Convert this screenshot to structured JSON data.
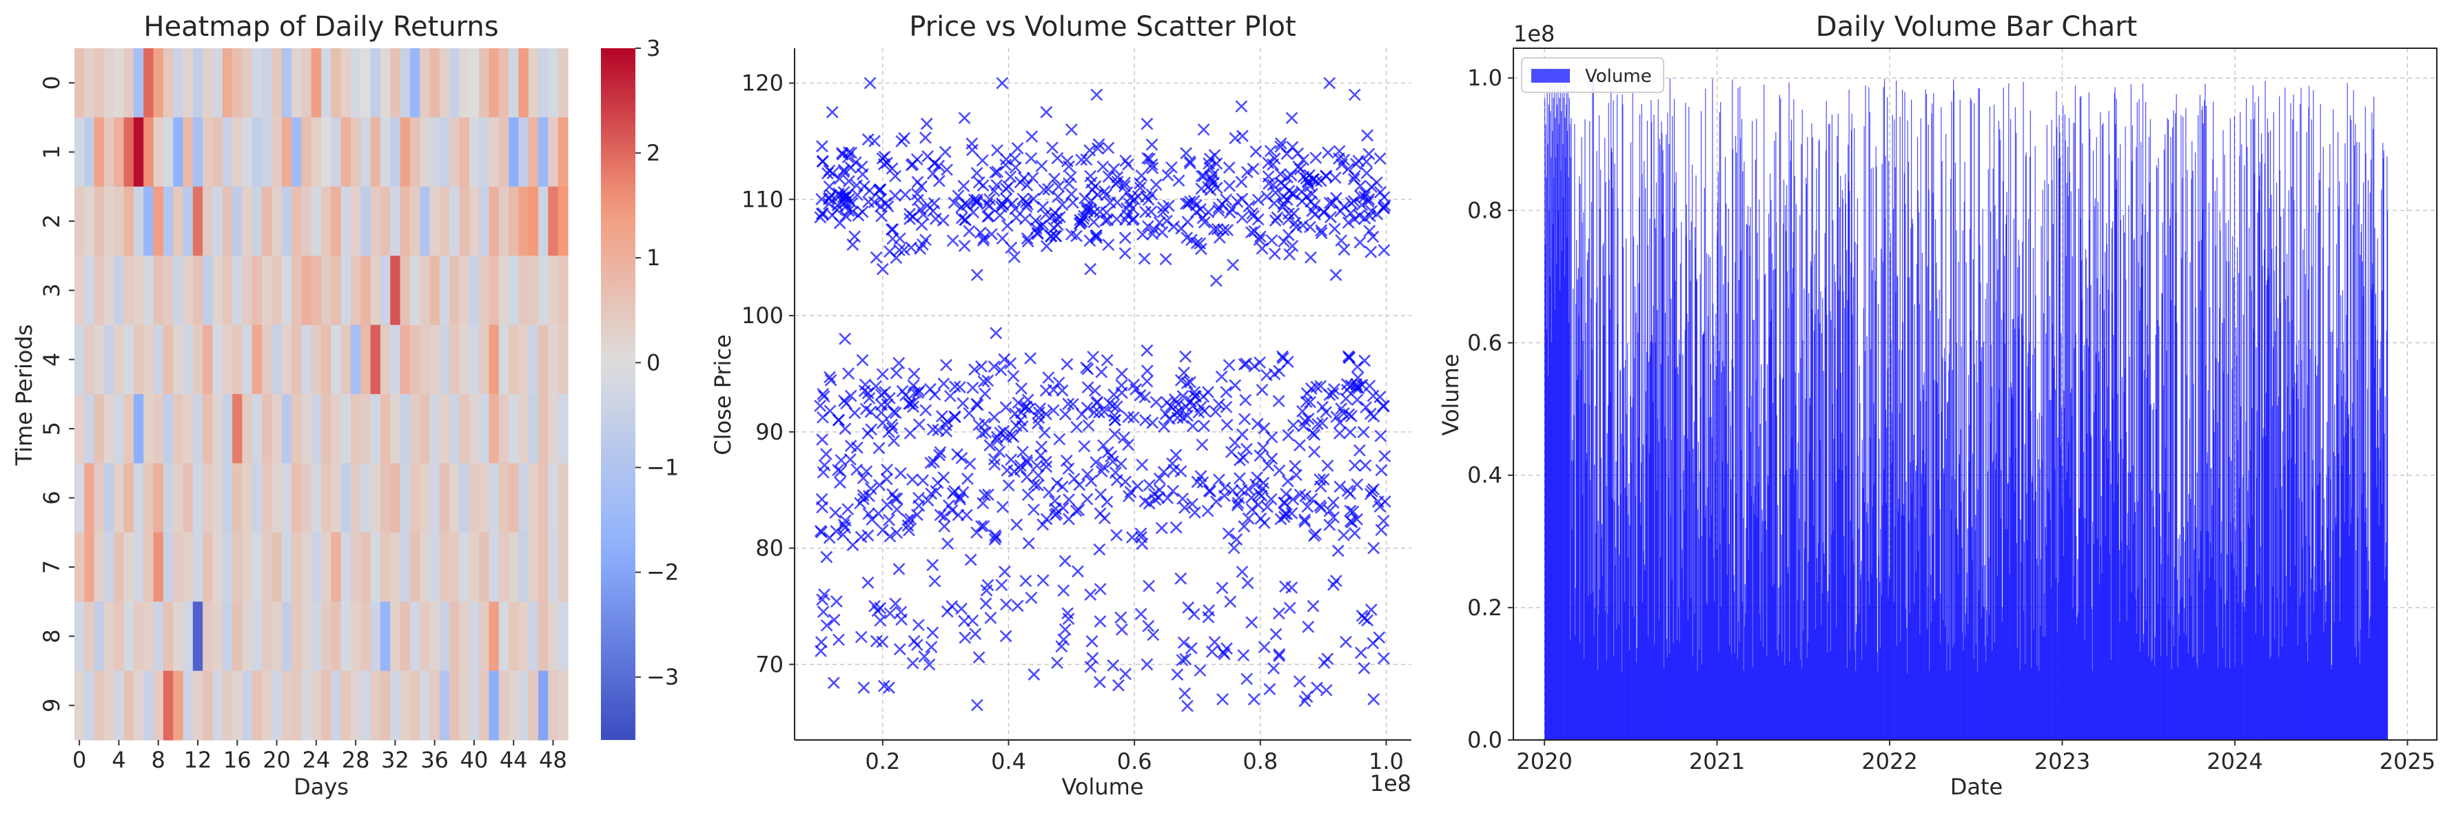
{
  "chart_data": [
    {
      "type": "heatmap",
      "title": "Heatmap of Daily Returns",
      "xlabel": "Days",
      "ylabel": "Time Periods",
      "xticks": [
        "0",
        "4",
        "8",
        "12",
        "16",
        "20",
        "24",
        "28",
        "32",
        "36",
        "40",
        "44",
        "48"
      ],
      "yticks": [
        "0",
        "1",
        "2",
        "3",
        "4",
        "5",
        "6",
        "7",
        "8",
        "9"
      ],
      "n_rows": 10,
      "n_cols": 50,
      "colormap": "coolwarm",
      "colorbar": {
        "vmin": -3.6,
        "vmax": 3.0,
        "ticks": [
          "3",
          "2",
          "1",
          "0",
          "−1",
          "−2",
          "−3"
        ],
        "tick_values": [
          3,
          2,
          1,
          0,
          -1,
          -2,
          -3
        ]
      },
      "values": [
        [
          0.6,
          0.3,
          0.5,
          0.2,
          0.1,
          0.4,
          -1.2,
          2.0,
          1.3,
          0.5,
          -0.4,
          0.2,
          -0.6,
          0.3,
          -0.3,
          1.1,
          0.7,
          0.4,
          -0.3,
          -0.4,
          0.5,
          -1.0,
          0.2,
          0.4,
          1.4,
          -0.3,
          0.7,
          0.3,
          -0.2,
          0.0,
          -0.6,
          0.1,
          0.6,
          -0.5,
          -1.5,
          0.4,
          0.8,
          0.3,
          -0.5,
          0.1,
          0.0,
          0.6,
          1.2,
          0.7,
          -0.3,
          1.4,
          0.3,
          -0.4,
          -0.2,
          0.4
        ],
        [
          -0.3,
          -0.7,
          1.3,
          0.5,
          1.0,
          2.0,
          2.9,
          1.6,
          0.3,
          -0.2,
          -1.7,
          0.8,
          -1.2,
          0.4,
          0.6,
          -0.5,
          0.3,
          -0.2,
          -0.6,
          -0.4,
          0.4,
          1.1,
          -1.4,
          0.7,
          0.3,
          0.0,
          -0.4,
          1.0,
          0.5,
          -0.3,
          0.9,
          -0.2,
          -0.6,
          1.3,
          0.6,
          0.2,
          -0.3,
          -0.5,
          0.4,
          0.8,
          -0.2,
          -0.4,
          0.3,
          0.6,
          -1.8,
          -0.6,
          0.9,
          -1.5,
          0.4,
          1.3
        ],
        [
          0.4,
          0.2,
          0.6,
          0.3,
          0.4,
          0.9,
          -0.4,
          -1.5,
          1.4,
          -1.0,
          0.5,
          -0.8,
          1.9,
          0.4,
          -0.3,
          0.6,
          -0.7,
          0.3,
          -0.4,
          0.8,
          0.3,
          -0.6,
          0.7,
          0.4,
          -0.2,
          0.5,
          1.0,
          -0.3,
          0.3,
          -0.7,
          0.4,
          0.6,
          -0.3,
          0.8,
          0.4,
          -1.0,
          0.3,
          0.5,
          -0.3,
          0.7,
          0.3,
          -0.5,
          1.0,
          0.4,
          0.8,
          1.3,
          1.5,
          -0.4,
          1.8,
          1.5
        ],
        [
          0.3,
          -0.3,
          0.5,
          0.2,
          -0.5,
          0.4,
          0.3,
          -0.2,
          0.6,
          0.4,
          -0.4,
          0.3,
          0.6,
          -0.6,
          0.2,
          0.5,
          -0.3,
          0.4,
          0.7,
          0.3,
          0.5,
          -0.2,
          0.6,
          1.0,
          0.8,
          0.4,
          0.7,
          -0.3,
          0.5,
          0.9,
          0.3,
          -0.4,
          2.2,
          0.6,
          -0.2,
          0.4,
          0.8,
          -0.3,
          0.6,
          0.3,
          -0.5,
          0.4,
          0.7,
          0.2,
          -0.3,
          0.5,
          0.4,
          -0.2,
          0.3,
          0.5
        ],
        [
          -0.3,
          0.4,
          0.2,
          -0.5,
          0.3,
          -0.2,
          0.5,
          0.3,
          -0.4,
          0.7,
          0.2,
          -0.3,
          0.4,
          1.0,
          -0.2,
          0.3,
          0.5,
          -0.3,
          1.2,
          0.4,
          -0.5,
          0.3,
          0.6,
          -0.3,
          0.4,
          0.7,
          -0.2,
          0.5,
          -1.2,
          0.8,
          2.1,
          0.4,
          -0.3,
          1.0,
          0.6,
          0.4,
          0.3,
          -0.4,
          0.5,
          0.2,
          -0.3,
          0.4,
          1.4,
          -0.2,
          0.5,
          0.3,
          -0.4,
          0.6,
          0.2,
          0.4
        ],
        [
          0.3,
          -0.4,
          0.6,
          0.2,
          -0.3,
          0.5,
          -1.8,
          0.3,
          0.4,
          -0.6,
          0.5,
          0.3,
          -0.4,
          0.7,
          0.2,
          -0.5,
          1.8,
          0.4,
          -0.3,
          0.6,
          0.3,
          -0.8,
          0.5,
          0.2,
          -0.4,
          0.6,
          0.3,
          -0.2,
          0.5,
          0.4,
          -0.3,
          0.7,
          0.2,
          -0.5,
          0.4,
          0.6,
          -0.3,
          0.3,
          -0.4,
          0.5,
          0.2,
          -0.3,
          1.0,
          0.4,
          -0.2,
          0.3,
          -0.5,
          0.6,
          0.2,
          -0.3
        ],
        [
          -0.2,
          1.2,
          0.4,
          -0.6,
          0.3,
          0.8,
          -0.3,
          0.5,
          1.0,
          -0.4,
          0.3,
          0.6,
          -0.3,
          0.4,
          0.2,
          -0.5,
          0.6,
          0.3,
          -0.4,
          0.5,
          0.2,
          -0.3,
          0.7,
          0.4,
          -0.2,
          0.5,
          0.3,
          -0.6,
          0.4,
          -0.3,
          0.2,
          0.6,
          0.8,
          -0.4,
          0.5,
          0.3,
          -0.3,
          0.6,
          0.2,
          -0.5,
          0.4,
          0.3,
          -0.3,
          0.5,
          0.7,
          -0.4,
          0.3,
          0.6,
          -0.2,
          0.4
        ],
        [
          0.5,
          1.2,
          0.3,
          -0.4,
          0.6,
          0.2,
          -0.3,
          0.5,
          1.6,
          -0.5,
          0.4,
          0.3,
          -0.3,
          0.6,
          0.2,
          -0.4,
          0.5,
          0.3,
          -0.2,
          0.4,
          0.6,
          -0.3,
          0.5,
          0.2,
          -0.4,
          0.3,
          1.0,
          -0.3,
          0.4,
          0.6,
          -0.2,
          0.5,
          0.3,
          -0.4,
          0.6,
          0.2,
          -0.3,
          0.5,
          0.4,
          -0.2,
          0.3,
          0.6,
          -0.3,
          0.4,
          0.2,
          -0.5,
          0.3,
          0.6,
          -0.3,
          0.4
        ],
        [
          -0.3,
          0.4,
          -0.6,
          0.3,
          0.5,
          -0.2,
          0.4,
          0.3,
          -0.4,
          0.6,
          0.2,
          -0.3,
          -3.2,
          0.4,
          0.3,
          -0.5,
          0.6,
          0.2,
          -0.3,
          0.4,
          0.3,
          -0.6,
          0.5,
          0.2,
          -0.3,
          0.4,
          0.6,
          -0.2,
          0.3,
          0.5,
          -0.4,
          -1.6,
          0.3,
          0.6,
          -0.3,
          0.4,
          0.2,
          -0.5,
          0.6,
          0.3,
          -0.3,
          0.4,
          1.4,
          -0.2,
          0.5,
          0.3,
          -0.4,
          0.6,
          0.2,
          -0.3
        ],
        [
          0.2,
          -0.4,
          0.5,
          0.3,
          -0.3,
          0.6,
          0.2,
          -0.5,
          0.4,
          2.0,
          1.3,
          -0.4,
          0.3,
          0.6,
          -0.3,
          0.4,
          0.2,
          -0.5,
          0.6,
          0.3,
          -0.3,
          0.4,
          0.5,
          -0.2,
          0.3,
          0.6,
          -0.4,
          0.5,
          0.2,
          -0.3,
          0.4,
          0.6,
          -0.3,
          0.3,
          0.5,
          -0.2,
          0.4,
          -1.0,
          0.6,
          0.3,
          -0.3,
          0.5,
          -1.8,
          0.4,
          0.2,
          -0.3,
          0.5,
          -2.0,
          0.4,
          0.3
        ]
      ]
    },
    {
      "type": "scatter",
      "title": "Price vs Volume Scatter Plot",
      "xlabel": "Volume",
      "ylabel": "Close Price",
      "x_scale_label": "1e8",
      "xlim": [
        0.06,
        1.04
      ],
      "ylim": [
        63.5,
        123
      ],
      "xticks": [
        0.2,
        0.4,
        0.6,
        0.8,
        1.0
      ],
      "xtick_labels": [
        "0.2",
        "0.4",
        "0.6",
        "0.8",
        "1.0"
      ],
      "yticks": [
        70,
        80,
        90,
        100,
        110,
        120
      ],
      "ytick_labels": [
        "70",
        "80",
        "90",
        "100",
        "110",
        "120"
      ],
      "grid": true,
      "marker": "x",
      "color": "#0000ff",
      "point_count": 1250,
      "price_bands": [
        [
          104,
          116,
          0.42
        ],
        [
          88,
          97,
          0.24
        ],
        [
          79,
          90,
          0.24
        ],
        [
          66,
          80,
          0.1
        ]
      ],
      "x": [
        0.18,
        0.39,
        0.54,
        0.91,
        0.95,
        0.12,
        0.33,
        0.46,
        0.77,
        0.27,
        0.62,
        0.85,
        0.71,
        0.5,
        0.23,
        0.97,
        0.15,
        0.41,
        0.59,
        0.82,
        0.22,
        0.53,
        0.77,
        0.71,
        0.95,
        0.13,
        0.37,
        0.6,
        0.85,
        0.28,
        0.64,
        0.94,
        0.5,
        0.33,
        0.19,
        0.88,
        0.2,
        0.35,
        0.53,
        0.73,
        0.92,
        0.14,
        0.38,
        0.62,
        0.94,
        0.25,
        0.58,
        0.76,
        0.99,
        0.45,
        0.13,
        0.21,
        0.29,
        0.46,
        0.57,
        0.64,
        0.73,
        0.85,
        0.91,
        0.98,
        0.34,
        0.51,
        0.78,
        0.53,
        0.31,
        0.49,
        0.25,
        0.96,
        0.62,
        0.21,
        0.98,
        0.74,
        0.35,
        0.79,
        0.68,
        0.89,
        0.17,
        0.19,
        0.58
      ],
      "y": [
        120,
        120,
        119,
        120,
        119,
        117.5,
        117,
        117.5,
        118,
        116.5,
        116.5,
        117,
        116,
        116,
        115,
        115.5,
        114,
        113.5,
        113,
        113,
        112,
        112,
        111.5,
        112,
        112,
        110.5,
        110,
        110,
        110.5,
        109,
        108,
        108,
        107,
        106,
        105,
        105,
        104,
        103.5,
        104,
        103,
        103.5,
        98,
        98.5,
        97,
        96.5,
        95,
        95,
        94,
        93,
        92,
        91,
        90,
        88,
        87,
        86.5,
        85,
        84,
        83,
        82,
        80,
        79,
        78,
        77,
        76,
        75,
        73,
        72,
        71,
        70,
        68,
        67,
        67,
        66.5,
        67,
        67.5,
        68,
        68,
        72,
        73
      ]
    },
    {
      "type": "bar",
      "title": "Daily Volume Bar Chart",
      "xlabel": "Date",
      "ylabel": "Volume",
      "y_scale_label": "1e8",
      "legend": {
        "label": "Volume",
        "position": "top-left"
      },
      "xlim": [
        2019.82,
        2025.17
      ],
      "ylim": [
        0,
        1.045
      ],
      "xticks": [
        2020,
        2021,
        2022,
        2023,
        2024,
        2025
      ],
      "xtick_labels": [
        "2020",
        "2021",
        "2022",
        "2023",
        "2024",
        "2025"
      ],
      "yticks": [
        0,
        0.2,
        0.4,
        0.6,
        0.8,
        1.0
      ],
      "ytick_labels": [
        "0.0",
        "0.2",
        "0.4",
        "0.6",
        "0.8",
        "1.0"
      ],
      "grid": true,
      "color": "#0000ff",
      "date_range": [
        "2020-01-01",
        "2024-11-19"
      ],
      "bar_count": 1785,
      "value_range": [
        0.1,
        1.0
      ],
      "daily_values_sample": [
        0.97,
        0.75,
        0.93,
        0.85,
        0.62,
        0.98,
        0.9,
        0.55,
        0.96,
        0.8,
        0.99,
        0.7,
        0.95,
        0.88,
        0.6,
        0.99,
        0.92,
        0.78,
        0.97,
        0.85,
        0.99,
        0.65,
        0.94,
        0.88,
        0.98,
        0.72,
        0.96,
        0.9,
        0.99,
        0.8,
        0.93,
        0.97,
        0.68,
        0.99,
        0.86,
        0.95,
        0.74,
        0.98,
        0.9,
        0.82,
        0.97,
        0.99,
        0.7,
        0.94,
        0.88,
        0.96,
        0.99,
        0.76,
        0.92,
        0.98,
        0.85,
        0.63,
        0.97,
        0.93
      ]
    }
  ]
}
